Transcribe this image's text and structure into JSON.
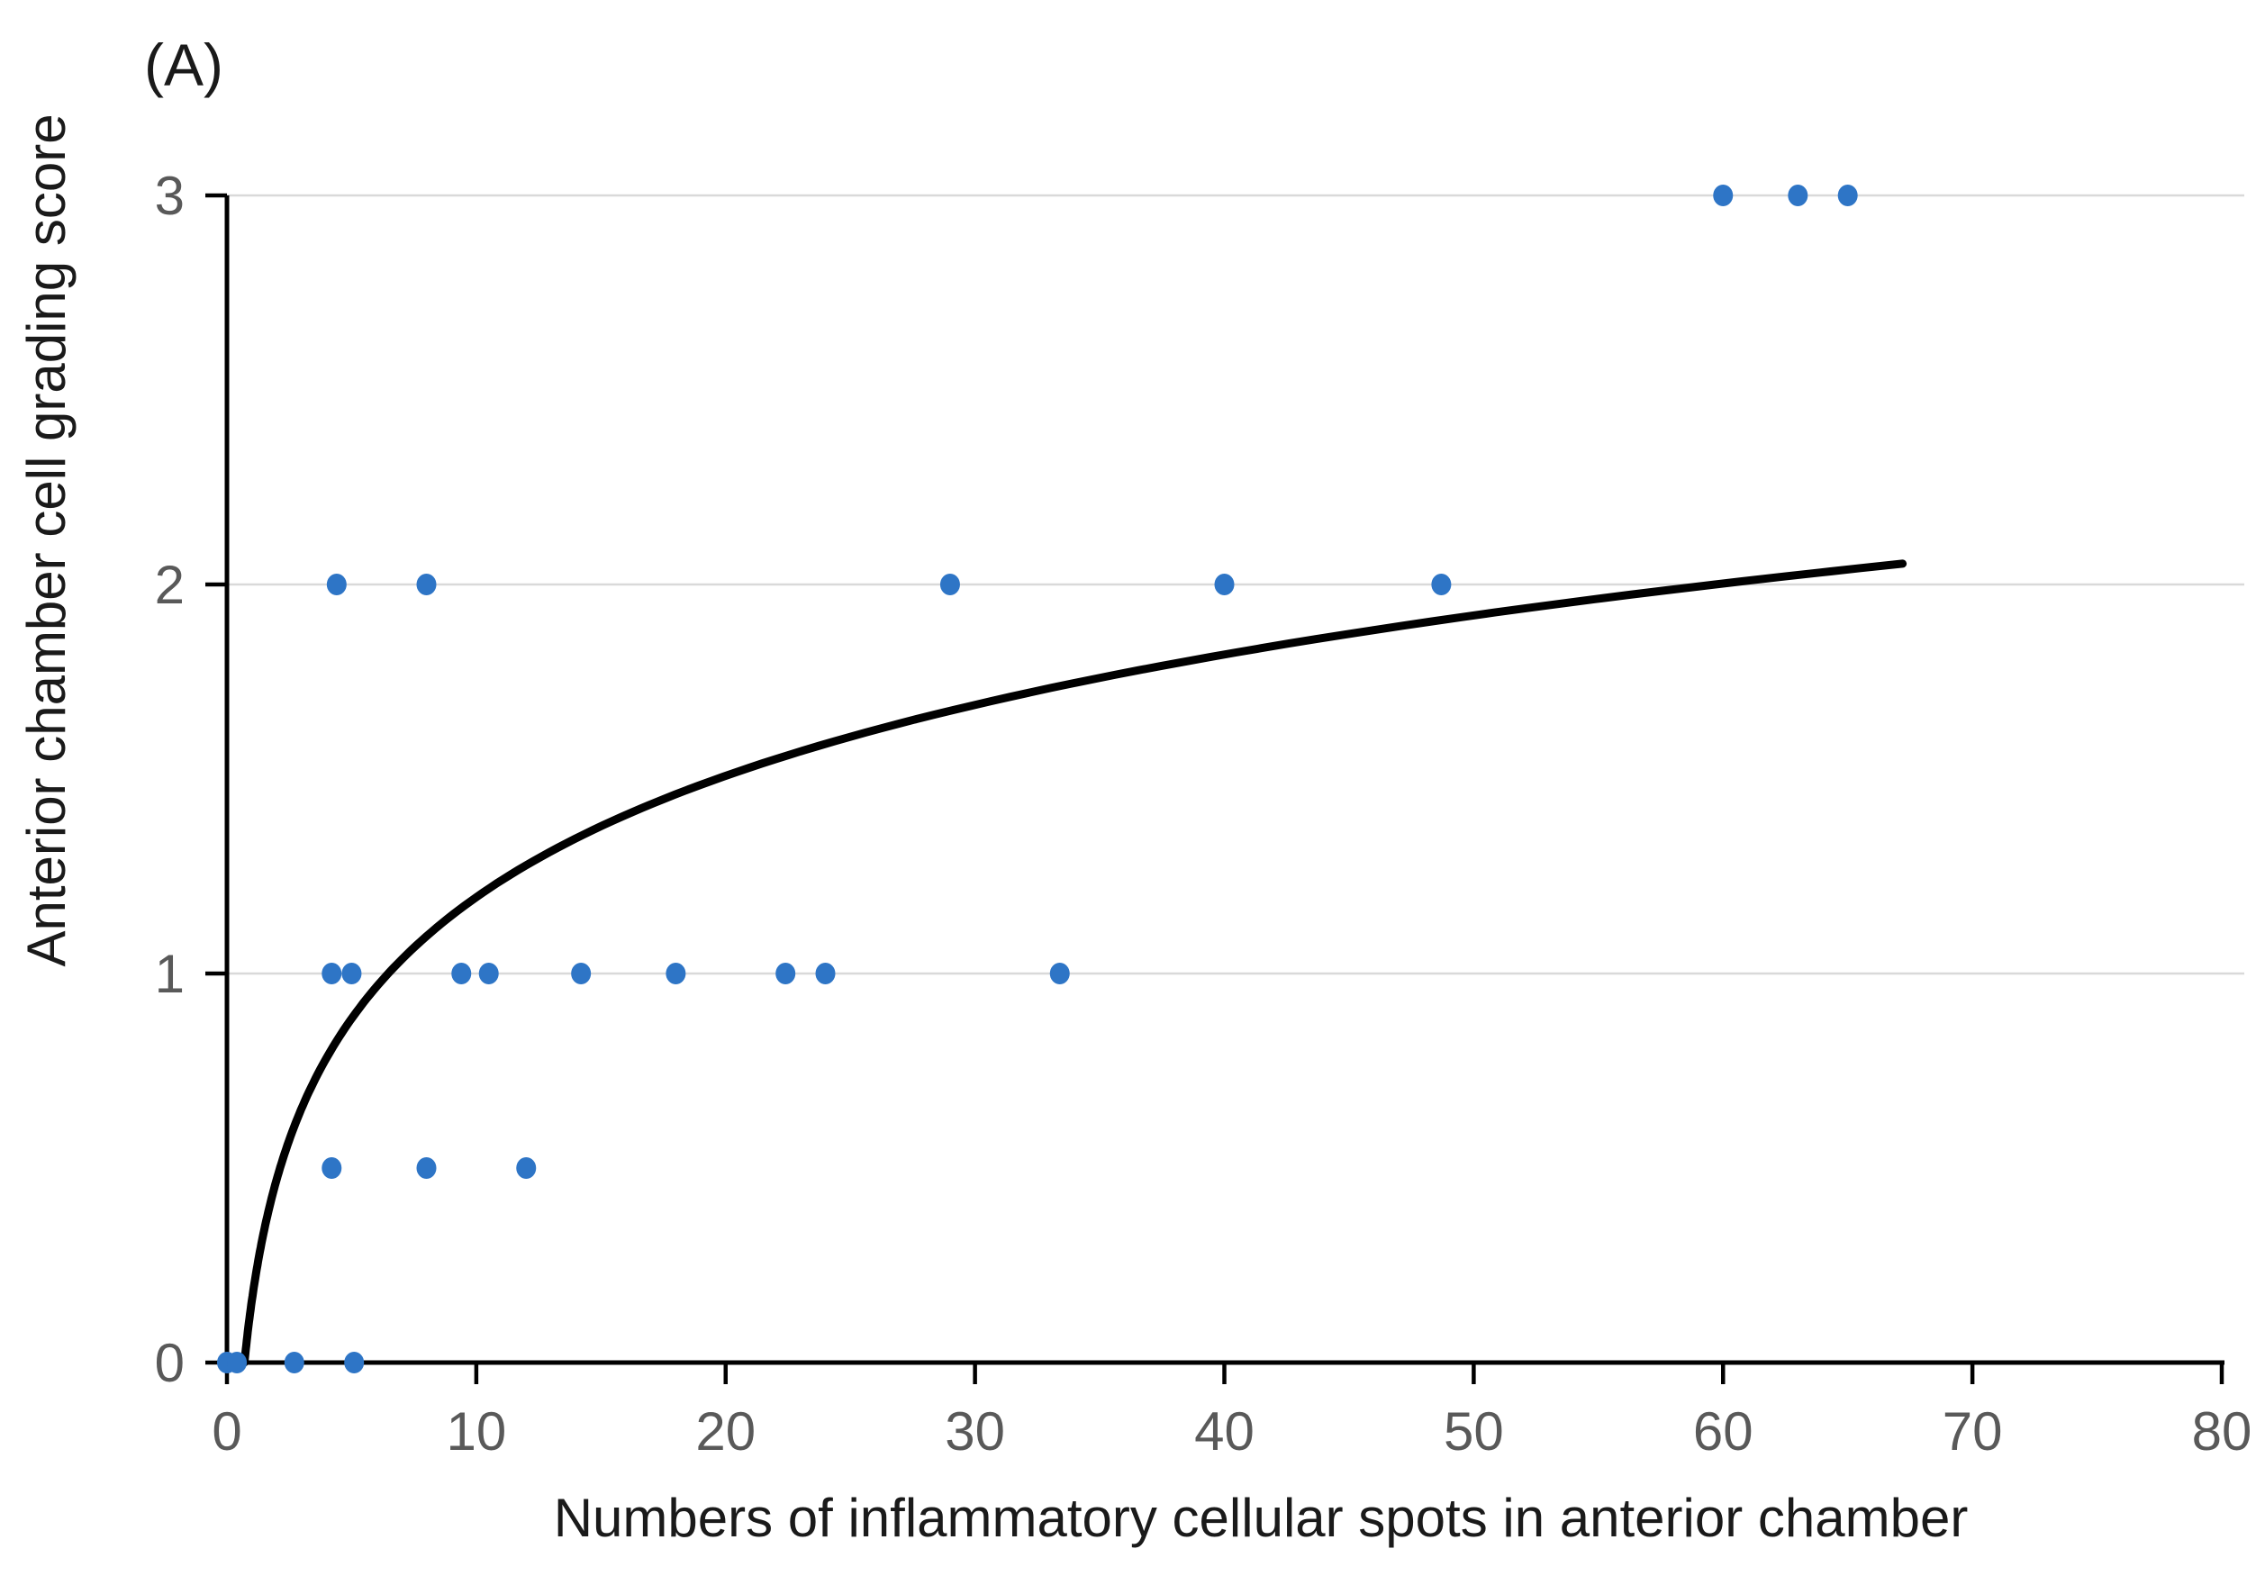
{
  "panel_label": "(A)",
  "colors": {
    "point": "#2E75C6",
    "curve": "#000000",
    "grid": "#D9D9D9",
    "axis": "#000000",
    "tick_label": "#595959",
    "title": "#1a1a1a"
  },
  "chart_data": {
    "type": "scatter",
    "title": "",
    "xlabel": "Numbers of inflammatory cellular spots in anterior chamber",
    "ylabel": "Anterior chamber cell grading score",
    "xlim": [
      0,
      80
    ],
    "ylim": [
      0,
      3
    ],
    "x_ticks": [
      0,
      10,
      20,
      30,
      40,
      50,
      60,
      70,
      80
    ],
    "y_ticks": [
      0,
      1,
      2,
      3
    ],
    "grid": "horizontal-only",
    "legend": "none",
    "points": [
      [
        0,
        0
      ],
      [
        0.4,
        0
      ],
      [
        2.7,
        0
      ],
      [
        5.1,
        0
      ],
      [
        4.2,
        0.5
      ],
      [
        8,
        0.5
      ],
      [
        12,
        0.5
      ],
      [
        4.2,
        1
      ],
      [
        5,
        1
      ],
      [
        9.4,
        1
      ],
      [
        10.5,
        1
      ],
      [
        14.2,
        1
      ],
      [
        18,
        1
      ],
      [
        22.4,
        1
      ],
      [
        24,
        1
      ],
      [
        33.4,
        1
      ],
      [
        4.4,
        2
      ],
      [
        8,
        2
      ],
      [
        29,
        2
      ],
      [
        40,
        2
      ],
      [
        48.7,
        2
      ],
      [
        60,
        3
      ],
      [
        63,
        3
      ],
      [
        65,
        3
      ]
    ],
    "trend": {
      "type": "logarithmic",
      "formula": "y = 0.45*ln(x) + 0.16",
      "a": 0.45,
      "b": 0.16,
      "x_start": 0.7,
      "x_end": 67.2
    }
  }
}
